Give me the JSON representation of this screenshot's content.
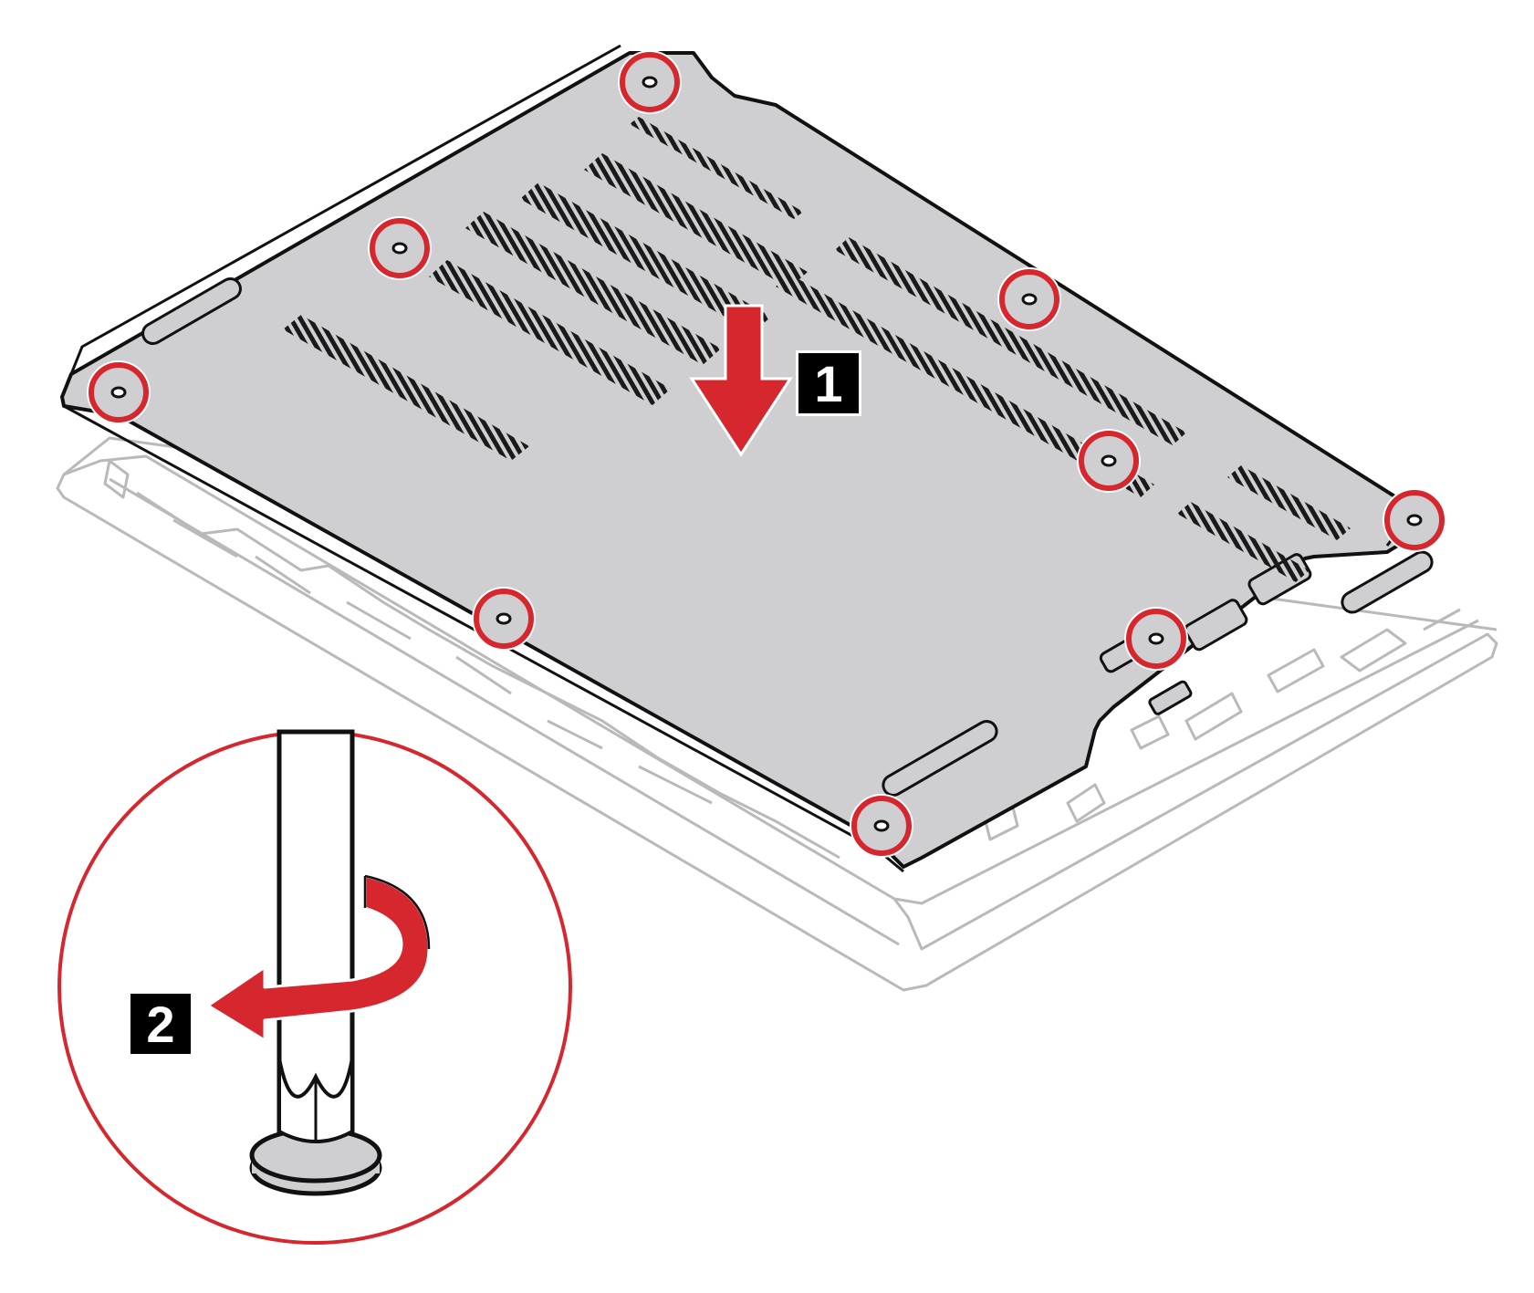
{
  "colors": {
    "accent_red": "#d6262e",
    "cover_gray": "#cfcfd1",
    "outline": "#111111",
    "base_ghost": "#b9b9b9"
  },
  "steps": [
    {
      "number": "1",
      "action": "down-arrow-icon"
    },
    {
      "number": "2",
      "action": "counterclockwise-arrow-icon"
    }
  ],
  "screw_count": 10,
  "icons": [
    "screwdriver-icon",
    "screw-callout-icon",
    "down-arrow-icon",
    "counterclockwise-arrow-icon"
  ]
}
